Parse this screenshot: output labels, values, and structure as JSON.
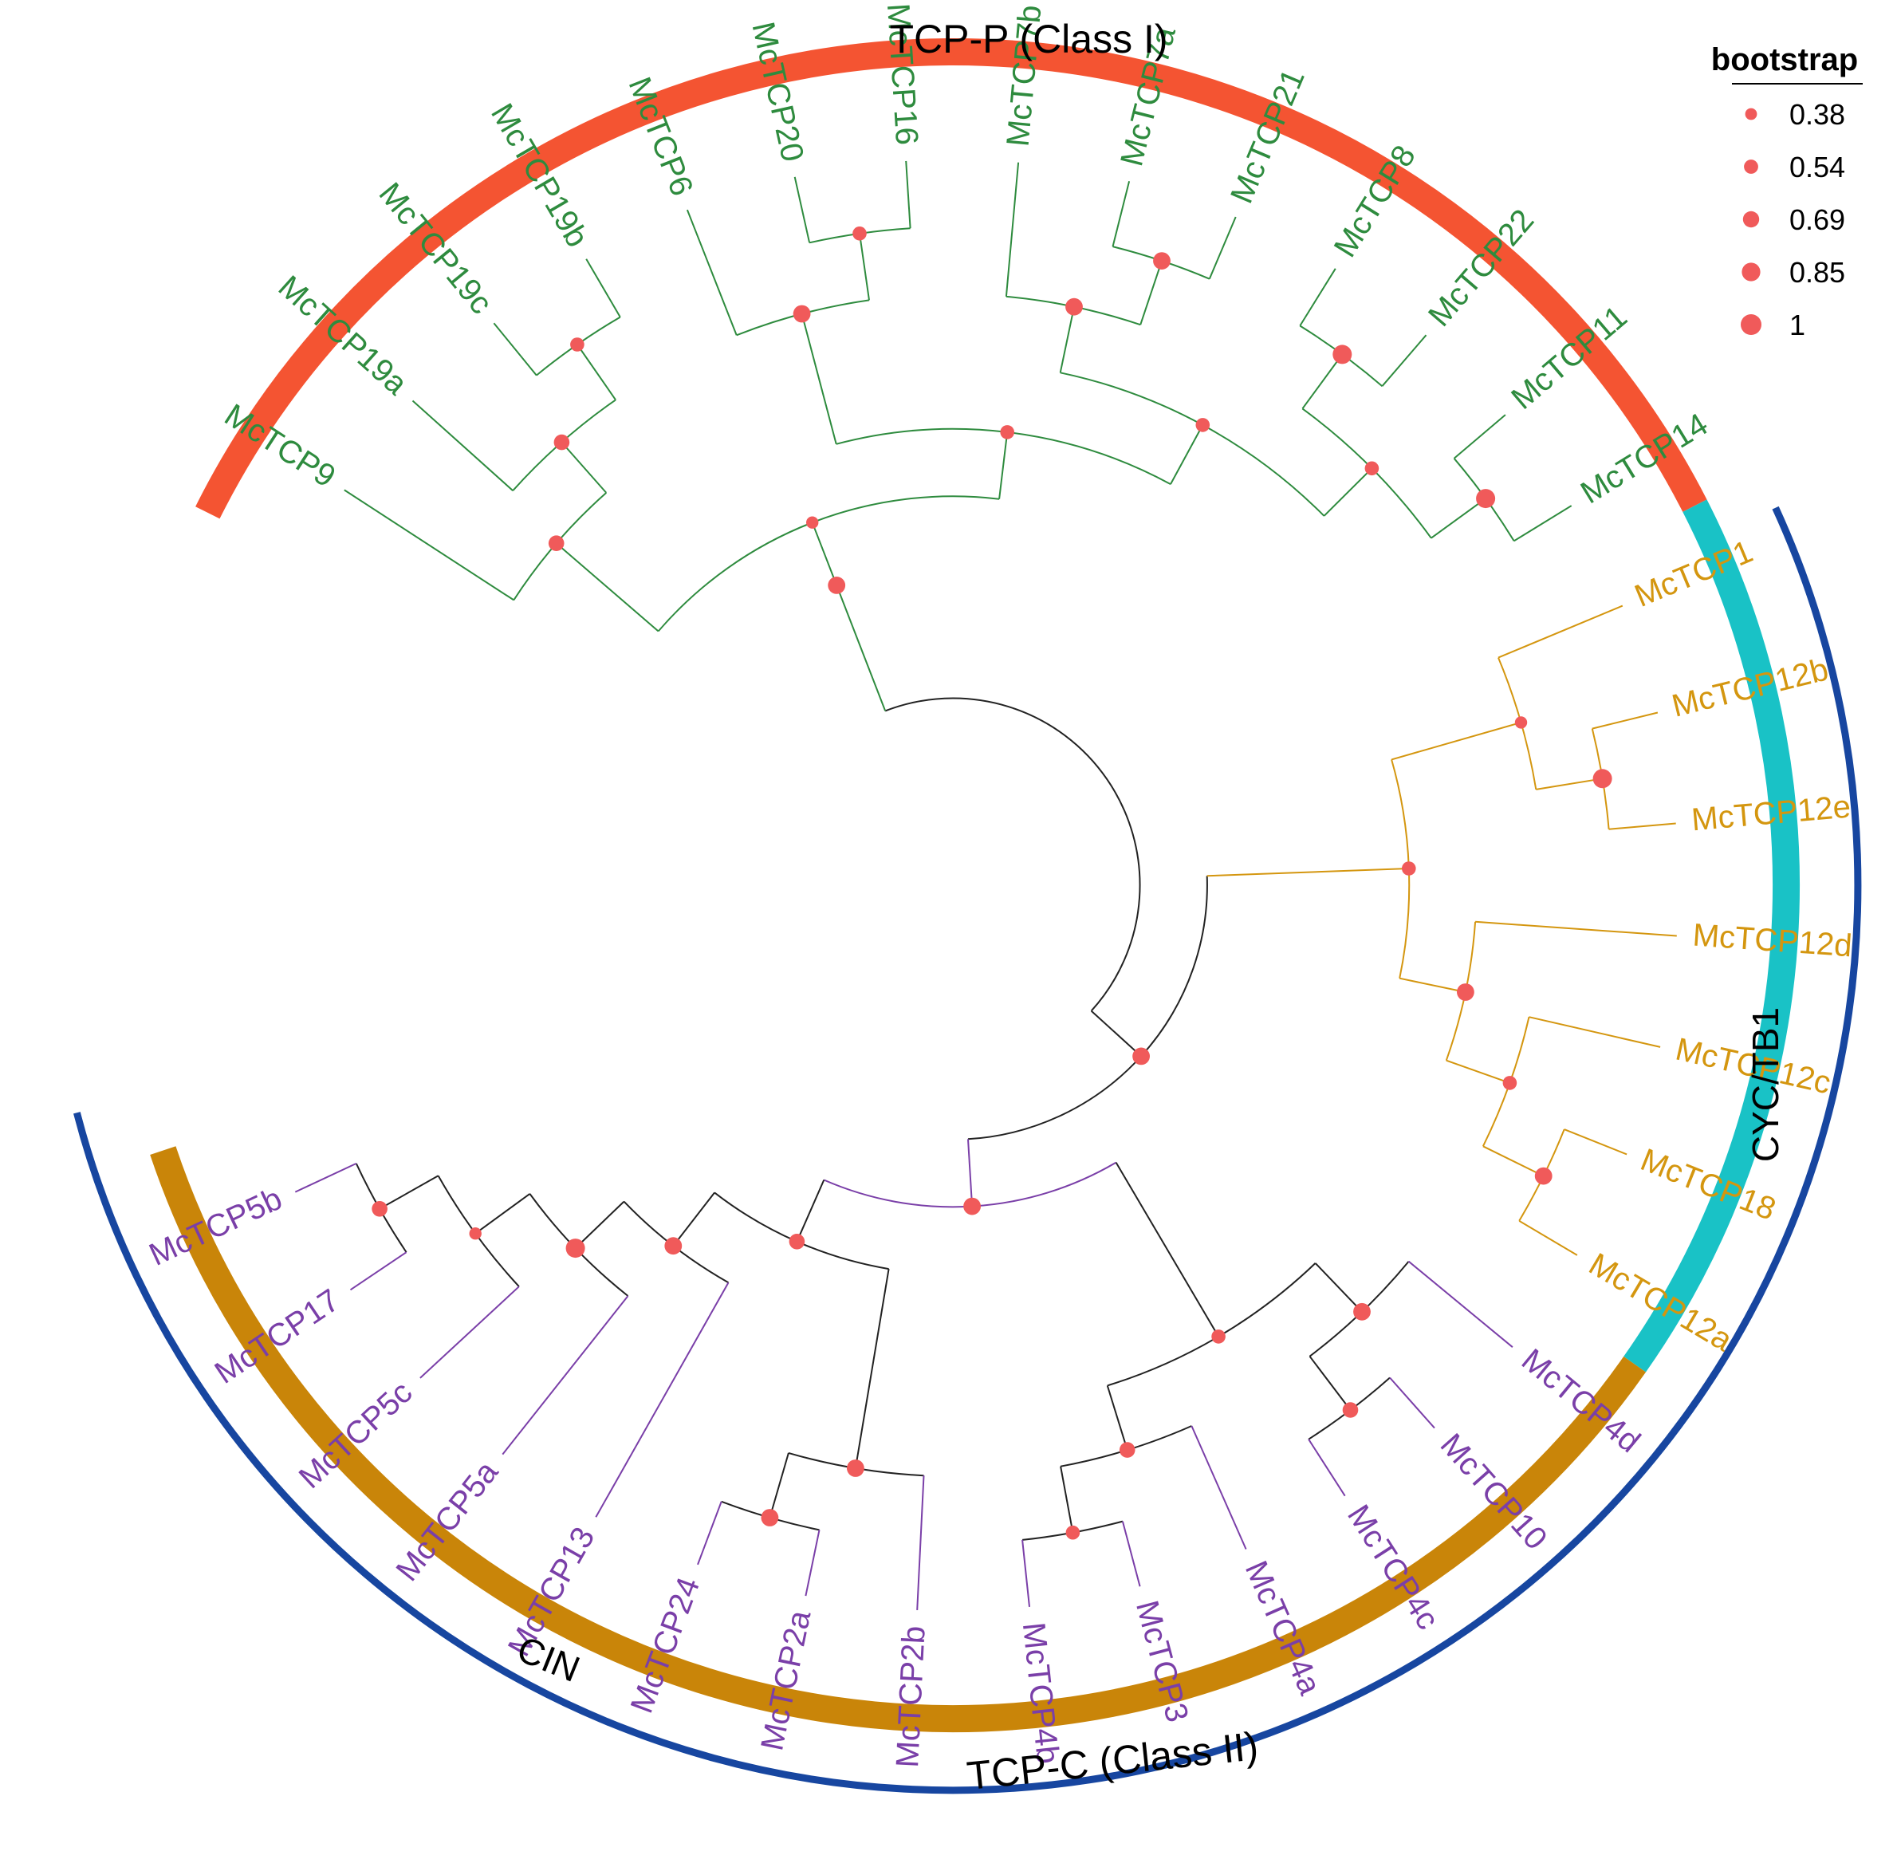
{
  "colors": {
    "class1": "#2e8b3e",
    "cyc": "#d4960f",
    "cin": "#7a3fa8",
    "black": "#222222",
    "node": "#f05a5a",
    "ring_p": "#f45432",
    "ring_cyc": "#19c2c6",
    "ring_cin": "#c98509",
    "ring_c": "#1746a0"
  },
  "clades": {
    "tcp_p": "TCP-P (Class I)",
    "tcp_c": "TCP-C (Class II)",
    "cyc_tb1": "CYC/TB1",
    "cin": "CIN"
  },
  "legend": {
    "title": "bootstrap",
    "items": [
      {
        "label": "0.38",
        "value": 0.38
      },
      {
        "label": "0.54",
        "value": 0.54
      },
      {
        "label": "0.69",
        "value": 0.69
      },
      {
        "label": "0.85",
        "value": 0.85
      },
      {
        "label": "1",
        "value": 1
      }
    ]
  },
  "leaves": [
    {
      "label": "McTCP9",
      "group": "class1"
    },
    {
      "label": "McTCP19a",
      "group": "class1"
    },
    {
      "label": "McTCP19c",
      "group": "class1"
    },
    {
      "label": "McTCP19b",
      "group": "class1"
    },
    {
      "label": "McTCP6",
      "group": "class1"
    },
    {
      "label": "McTCP20",
      "group": "class1"
    },
    {
      "label": "McTCP16",
      "group": "class1"
    },
    {
      "label": "McTCP7b",
      "group": "class1"
    },
    {
      "label": "McTCP7a",
      "group": "class1"
    },
    {
      "label": "McTCP21",
      "group": "class1"
    },
    {
      "label": "McTCP8",
      "group": "class1"
    },
    {
      "label": "McTCP22",
      "group": "class1"
    },
    {
      "label": "McTCP11",
      "group": "class1"
    },
    {
      "label": "McTCP14",
      "group": "class1"
    },
    {
      "label": "McTCP1",
      "group": "cyc"
    },
    {
      "label": "McTCP12b",
      "group": "cyc"
    },
    {
      "label": "McTCP12e",
      "group": "cyc"
    },
    {
      "label": "McTCP12d",
      "group": "cyc"
    },
    {
      "label": "McTCP12c",
      "group": "cyc"
    },
    {
      "label": "McTCP18",
      "group": "cyc"
    },
    {
      "label": "McTCP12a",
      "group": "cyc"
    },
    {
      "label": "McTCP4d",
      "group": "cin"
    },
    {
      "label": "McTCP10",
      "group": "cin"
    },
    {
      "label": "McTCP4c",
      "group": "cin"
    },
    {
      "label": "McTCP4a",
      "group": "cin"
    },
    {
      "label": "McTCP3",
      "group": "cin"
    },
    {
      "label": "McTCP4b",
      "group": "cin"
    },
    {
      "label": "McTCP2b",
      "group": "cin"
    },
    {
      "label": "McTCP2a",
      "group": "cin"
    },
    {
      "label": "McTCP24",
      "group": "cin"
    },
    {
      "label": "McTCP13",
      "group": "cin"
    },
    {
      "label": "McTCP5a",
      "group": "cin"
    },
    {
      "label": "McTCP5c",
      "group": "cin"
    },
    {
      "label": "McTCP17",
      "group": "cin"
    },
    {
      "label": "McTCP5b",
      "group": "cin"
    }
  ],
  "tree": {
    "children": [
      {
        "s": 0.85,
        "c": "class1",
        "children": [
          {
            "s": 0.38,
            "c": "class1",
            "children": [
              {
                "s": 0.69,
                "c": "class1",
                "children": [
                  {
                    "leaf": 0
                  },
                  {
                    "s": 0.69,
                    "c": "class1",
                    "children": [
                      {
                        "leaf": 1
                      },
                      {
                        "s": 0.54,
                        "c": "class1",
                        "children": [
                          {
                            "leaf": 2
                          },
                          {
                            "leaf": 3
                          }
                        ]
                      }
                    ]
                  }
                ]
              },
              {
                "s": 0.54,
                "c": "class1",
                "children": [
                  {
                    "s": 0.85,
                    "c": "class1",
                    "children": [
                      {
                        "leaf": 4
                      },
                      {
                        "s": 0.54,
                        "c": "class1",
                        "children": [
                          {
                            "leaf": 5
                          },
                          {
                            "leaf": 6
                          }
                        ]
                      }
                    ]
                  },
                  {
                    "s": 0.54,
                    "c": "class1",
                    "children": [
                      {
                        "s": 0.85,
                        "c": "class1",
                        "children": [
                          {
                            "leaf": 7
                          },
                          {
                            "s": 0.85,
                            "c": "class1",
                            "children": [
                              {
                                "leaf": 8
                              },
                              {
                                "leaf": 9
                              }
                            ]
                          }
                        ]
                      },
                      {
                        "s": 0.54,
                        "c": "class1",
                        "children": [
                          {
                            "s": 1,
                            "c": "class1",
                            "children": [
                              {
                                "leaf": 10
                              },
                              {
                                "leaf": 11
                              }
                            ]
                          },
                          {
                            "s": 1,
                            "c": "class1",
                            "children": [
                              {
                                "leaf": 12
                              },
                              {
                                "leaf": 13
                              }
                            ]
                          }
                        ]
                      }
                    ]
                  }
                ]
              }
            ]
          }
        ]
      },
      {
        "s": 0.85,
        "c": "black",
        "children": [
          {
            "s": 0.54,
            "c": "cyc",
            "children": [
              {
                "s": 0.38,
                "c": "cyc",
                "children": [
                  {
                    "leaf": 14
                  },
                  {
                    "s": 1,
                    "c": "cyc",
                    "children": [
                      {
                        "leaf": 15
                      },
                      {
                        "leaf": 16
                      }
                    ]
                  }
                ]
              },
              {
                "s": 0.85,
                "c": "cyc",
                "children": [
                  {
                    "leaf": 17
                  },
                  {
                    "s": 0.54,
                    "c": "cyc",
                    "children": [
                      {
                        "leaf": 18
                      },
                      {
                        "s": 0.85,
                        "c": "cyc",
                        "children": [
                          {
                            "leaf": 19
                          },
                          {
                            "leaf": 20
                          }
                        ]
                      }
                    ]
                  }
                ]
              }
            ]
          },
          {
            "s": 0.85,
            "c": "cin",
            "children": [
              {
                "s": 0.54,
                "c": "black",
                "children": [
                  {
                    "s": 0.85,
                    "c": "black",
                    "children": [
                      {
                        "leaf": 21
                      },
                      {
                        "s": 0.69,
                        "c": "black",
                        "children": [
                          {
                            "leaf": 22
                          },
                          {
                            "leaf": 23
                          }
                        ]
                      }
                    ]
                  },
                  {
                    "s": 0.69,
                    "c": "black",
                    "children": [
                      {
                        "leaf": 24
                      },
                      {
                        "s": 0.54,
                        "c": "black",
                        "children": [
                          {
                            "leaf": 25
                          },
                          {
                            "leaf": 26
                          }
                        ]
                      }
                    ]
                  }
                ]
              },
              {
                "s": 0.69,
                "c": "black",
                "children": [
                  {
                    "s": 0.85,
                    "c": "black",
                    "children": [
                      {
                        "leaf": 27
                      },
                      {
                        "s": 0.85,
                        "c": "black",
                        "children": [
                          {
                            "leaf": 28
                          },
                          {
                            "leaf": 29
                          }
                        ]
                      }
                    ]
                  },
                  {
                    "s": 0.85,
                    "c": "black",
                    "children": [
                      {
                        "leaf": 30
                      },
                      {
                        "s": 1,
                        "c": "black",
                        "children": [
                          {
                            "leaf": 31
                          },
                          {
                            "s": 0.38,
                            "c": "black",
                            "children": [
                              {
                                "leaf": 32
                              },
                              {
                                "s": 0.69,
                                "c": "black",
                                "children": [
                                  {
                                    "leaf": 33
                                  },
                                  {
                                    "leaf": 34
                                  }
                                ]
                              }
                            ]
                          }
                        ]
                      }
                    ]
                  }
                ]
              }
            ]
          }
        ]
      }
    ]
  }
}
